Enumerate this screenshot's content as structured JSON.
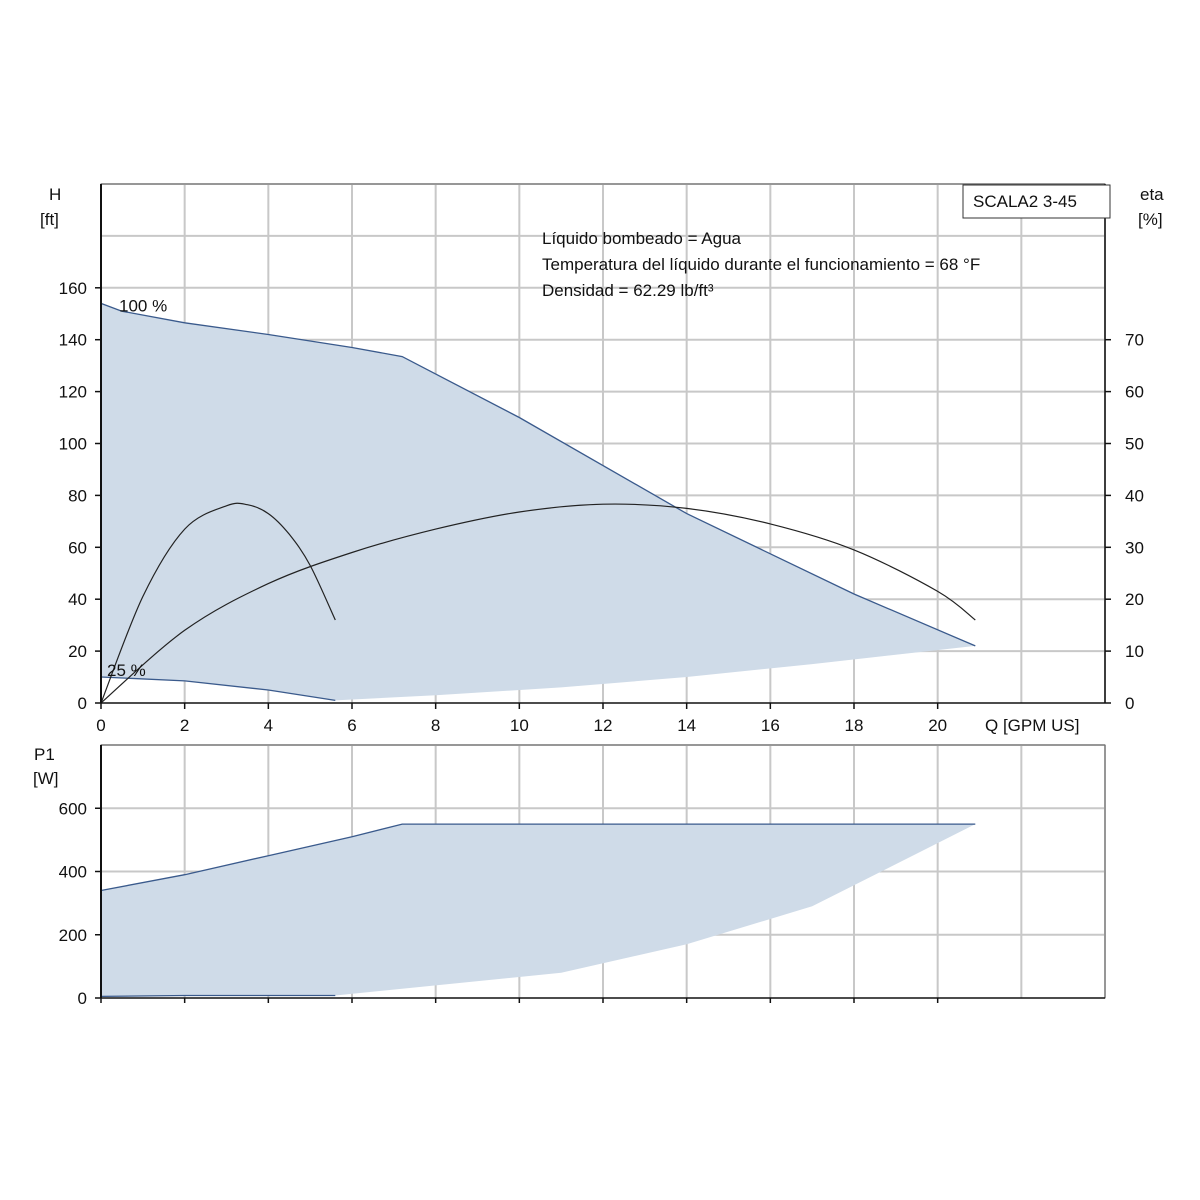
{
  "model_label": "SCALA2 3-45",
  "info_lines": [
    "Líquido bombeado = Agua",
    "Temperatura del líquido durante el funcionamiento = 68 °F",
    "Densidad = 62.29 lb/ft³"
  ],
  "colors": {
    "band_fill": "#cfdbe8",
    "curve_blue": "#3a5a8c",
    "eta_line": "#222222",
    "grid": "#c8c8c8"
  },
  "chart_data": [
    {
      "type": "area",
      "xlabel": "Q [GPM US]",
      "ylabel": [
        "H",
        "[ft]"
      ],
      "y2label": [
        "eta",
        "[%]"
      ],
      "xlim": [
        0,
        24
      ],
      "ylim": [
        0,
        200
      ],
      "y2lim": [
        0,
        100
      ],
      "xticks": [
        "0",
        "2",
        "4",
        "6",
        "8",
        "10",
        "12",
        "14",
        "16",
        "18",
        "20"
      ],
      "yticks": [
        "0",
        "20",
        "40",
        "60",
        "80",
        "100",
        "120",
        "140",
        "160"
      ],
      "y2ticks": [
        "0",
        "10",
        "20",
        "30",
        "40",
        "50",
        "60",
        "70"
      ],
      "grid": true,
      "annotations": [
        "100 %",
        "25 %"
      ],
      "series": [
        {
          "name": "100 %",
          "x": [
            0,
            0.5,
            2,
            4,
            6,
            7.2,
            10,
            14,
            18,
            20.9
          ],
          "y": [
            154,
            151,
            146.5,
            142,
            137,
            133.5,
            110,
            73,
            42,
            22
          ]
        },
        {
          "name": "25 %",
          "x": [
            0,
            2,
            4,
            5.6
          ],
          "y": [
            10,
            8.5,
            5,
            1
          ]
        },
        {
          "x": [
            5.6,
            8,
            11,
            14,
            17,
            20.9
          ],
          "y": [
            1,
            3,
            6,
            10,
            15,
            22
          ]
        }
      ],
      "eta_series": [
        {
          "x": [
            0,
            1,
            2,
            3,
            3.5,
            4,
            4.5,
            5,
            5.6
          ],
          "y": [
            0,
            20.5,
            33.5,
            38,
            38.2,
            36.5,
            32.5,
            26.5,
            16
          ]
        },
        {
          "x": [
            0,
            2,
            4,
            6,
            8,
            10,
            12,
            14,
            16,
            18,
            20,
            20.9
          ],
          "y": [
            0,
            14,
            23,
            29,
            33.5,
            36.8,
            38.3,
            37.5,
            34.5,
            29.5,
            21.5,
            16
          ]
        }
      ]
    },
    {
      "type": "area",
      "xlabel": "",
      "ylabel": [
        "P1",
        "[W]"
      ],
      "xlim": [
        0,
        24
      ],
      "ylim": [
        0,
        800
      ],
      "yticks": [
        "0",
        "200",
        "400",
        "600"
      ],
      "grid": true,
      "series": [
        {
          "x": [
            0,
            2,
            4,
            6,
            7.2,
            12,
            16,
            20.9
          ],
          "y": [
            340,
            390,
            450,
            510,
            550,
            550,
            550,
            550
          ]
        },
        {
          "x": [
            0,
            2,
            4,
            5.6
          ],
          "y": [
            5,
            8,
            8,
            8
          ]
        },
        {
          "x": [
            5.6,
            8,
            11,
            14,
            17,
            20.9
          ],
          "y": [
            8,
            40,
            80,
            170,
            290,
            550
          ]
        }
      ]
    }
  ]
}
